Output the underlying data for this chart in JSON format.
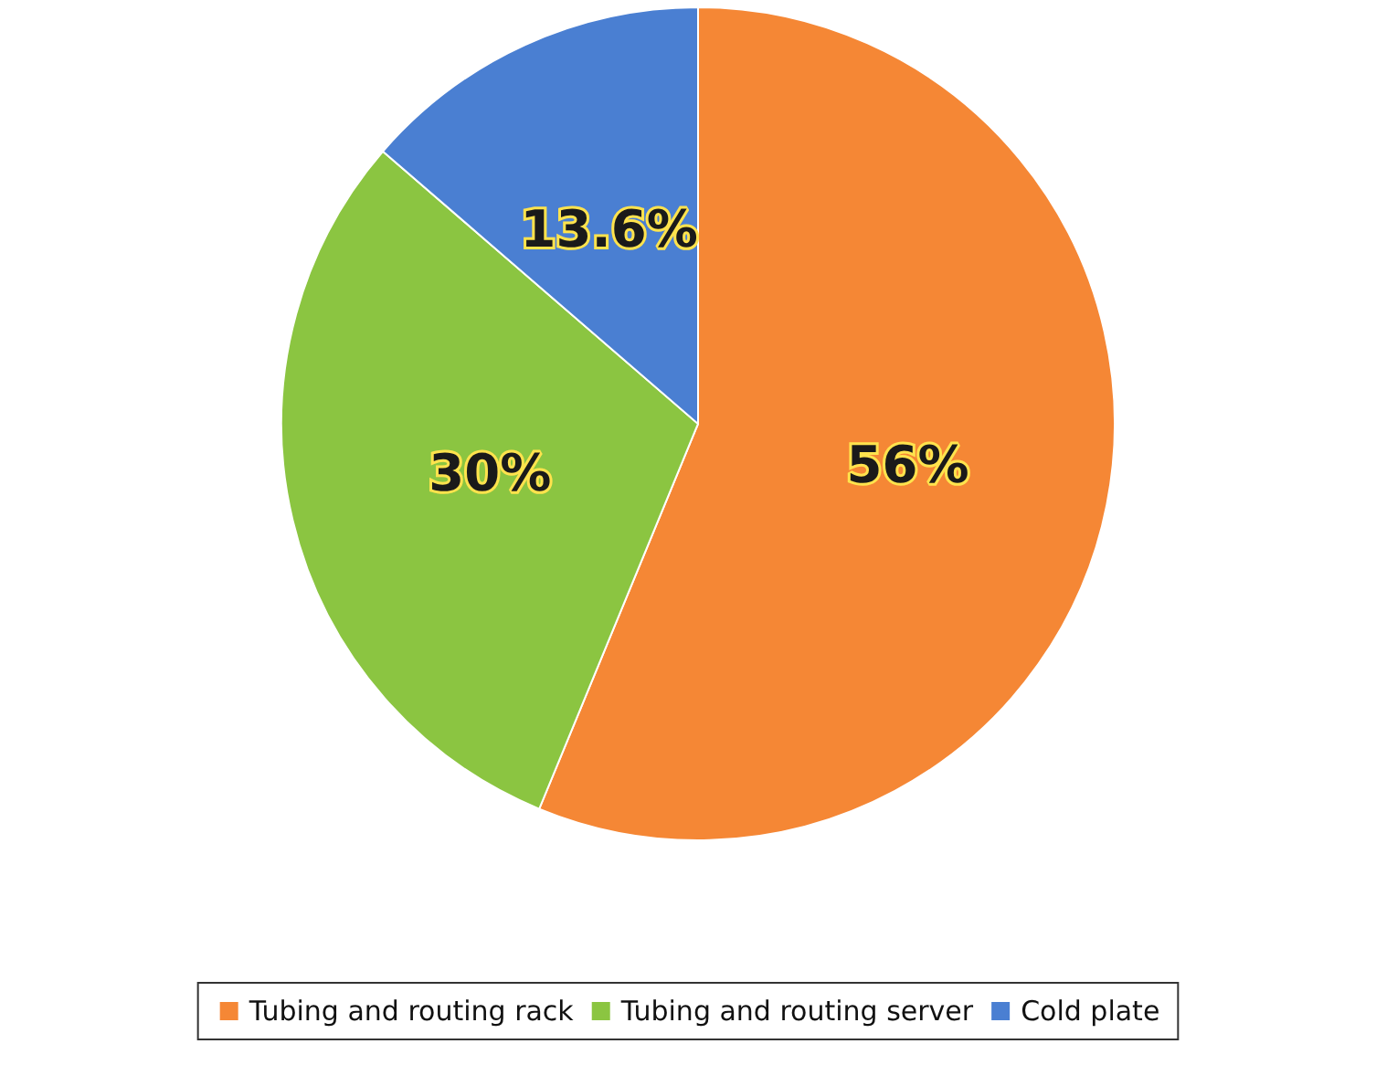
{
  "chart_data": {
    "type": "pie",
    "categories": [
      "Tubing and routing rack",
      "Tubing and routing server",
      "Cold plate"
    ],
    "values": [
      56,
      30,
      13.6
    ],
    "colors": [
      "#f58735",
      "#8bc541",
      "#4a7fd2"
    ],
    "value_labels": [
      "56%",
      "30%",
      "13.6%"
    ],
    "legend": "bottom"
  }
}
